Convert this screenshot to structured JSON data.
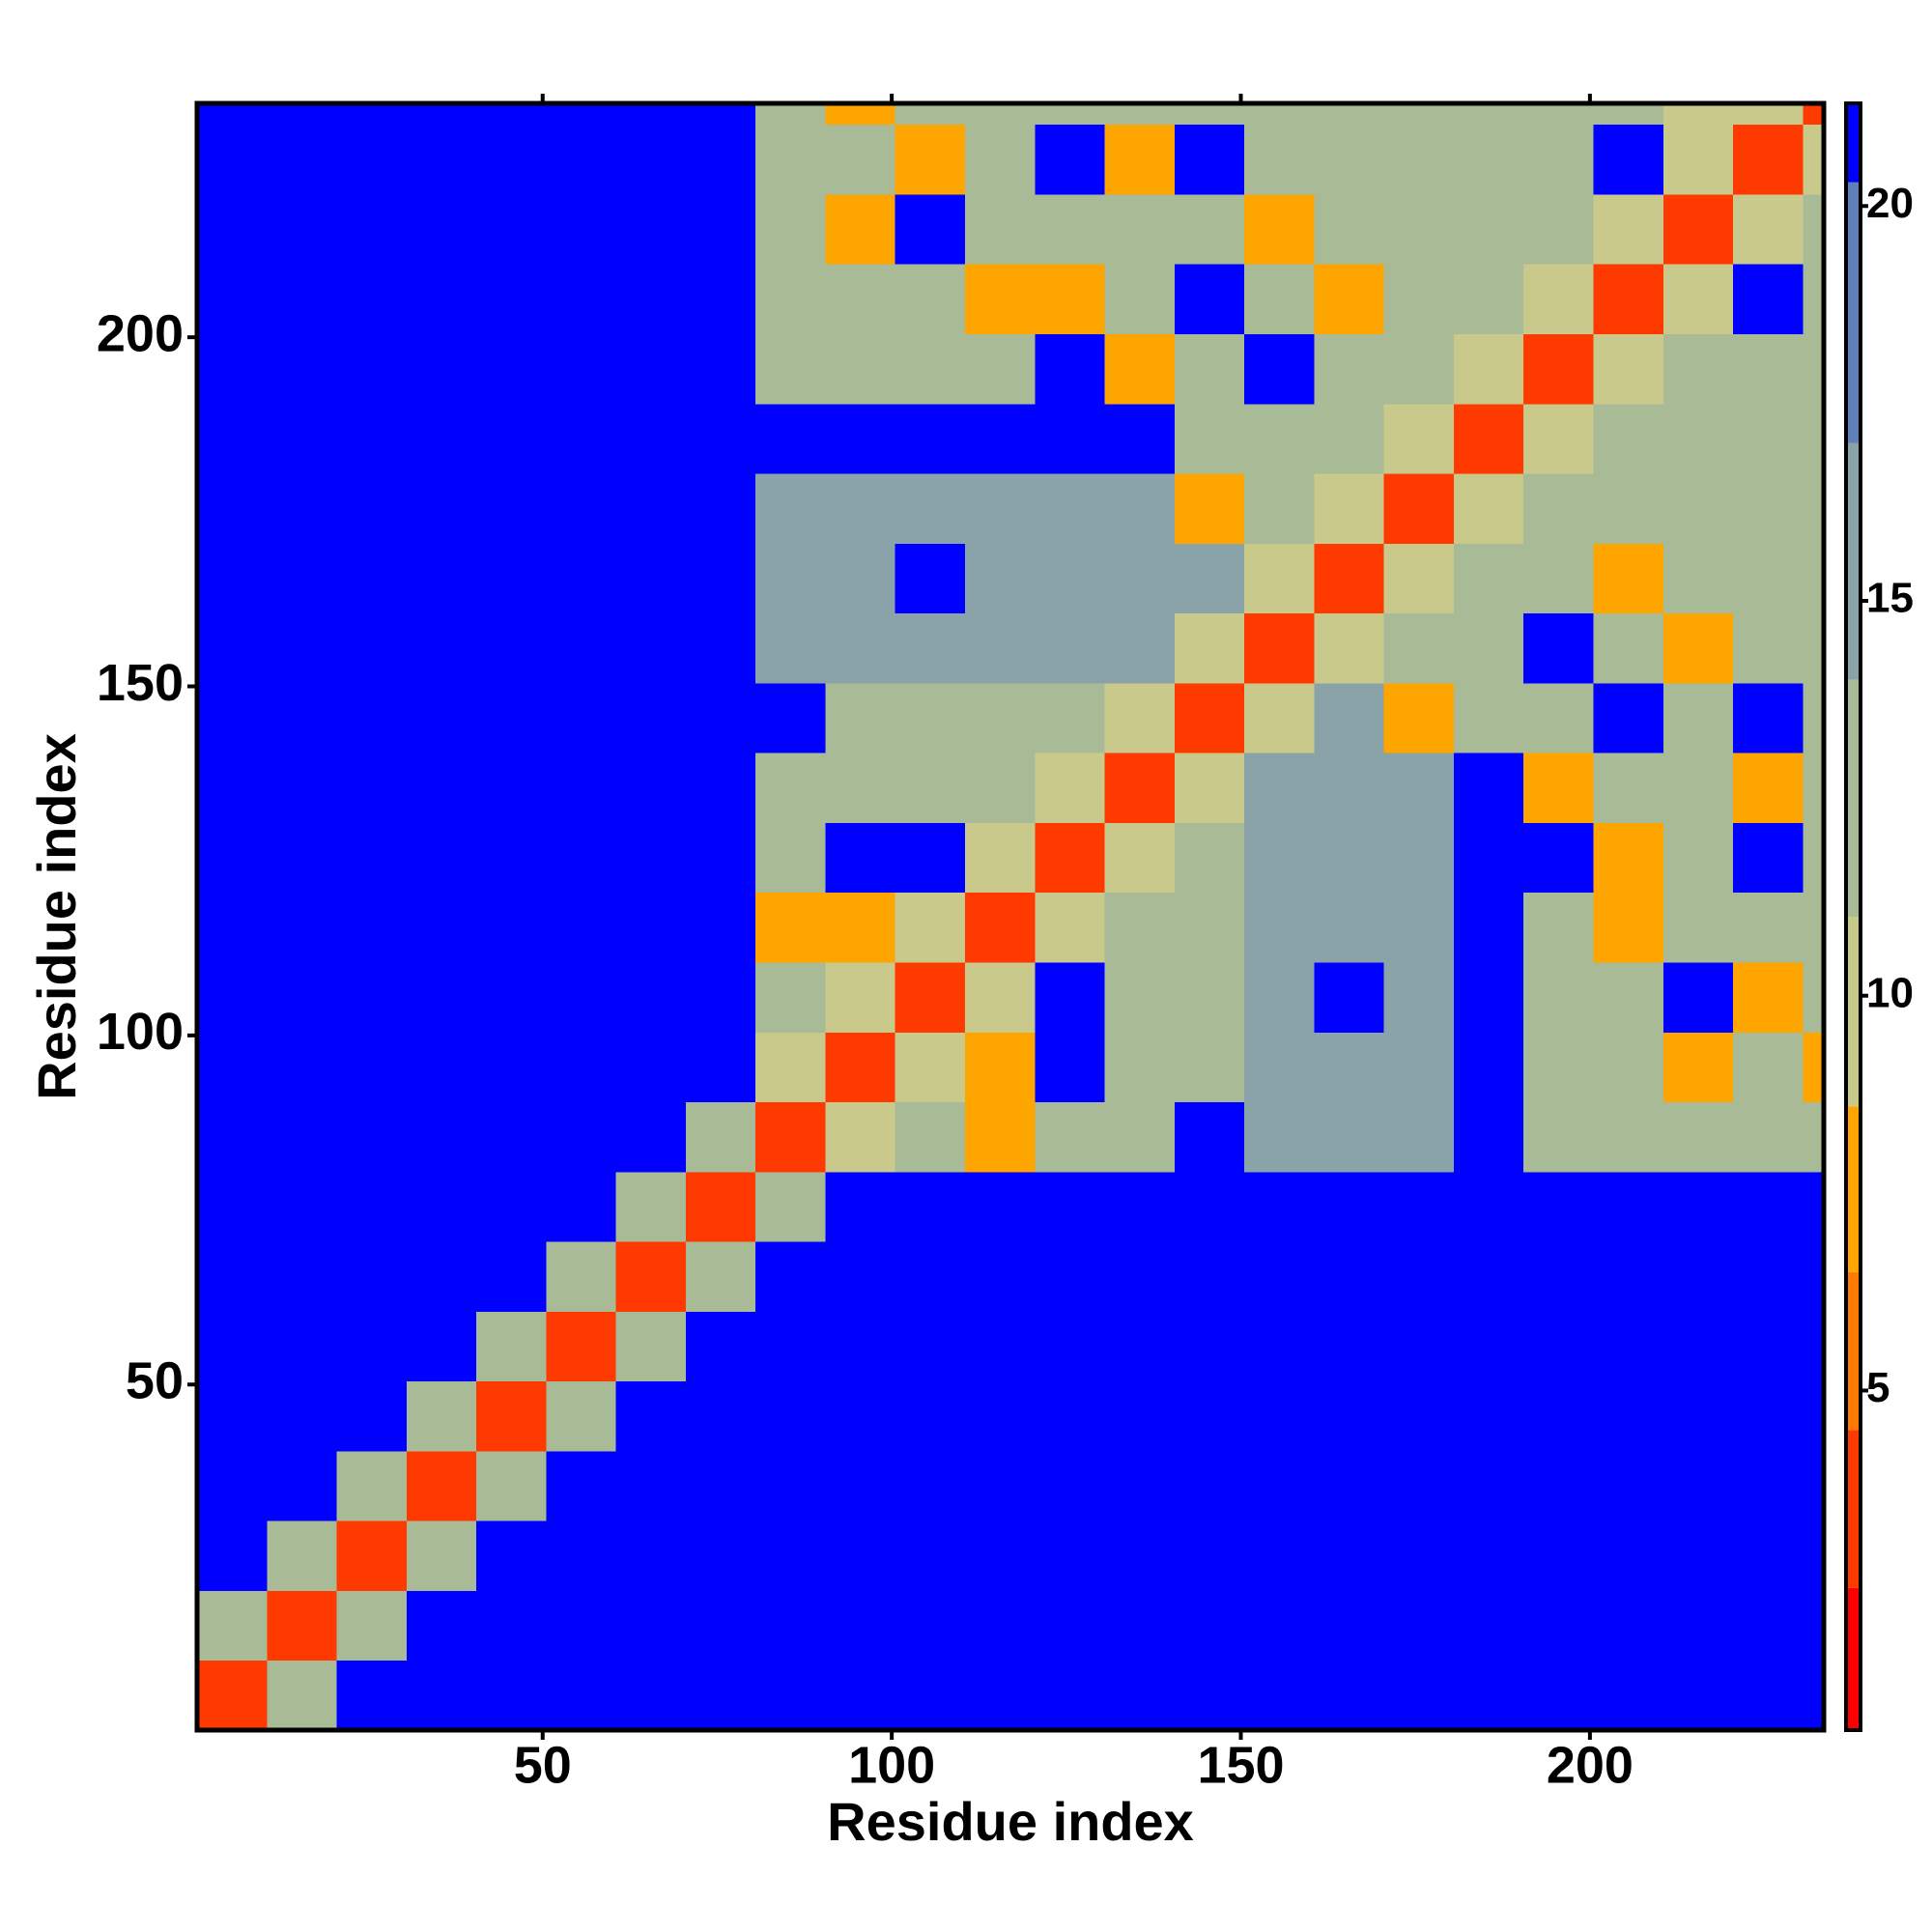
{
  "chart_data": {
    "type": "heatmap",
    "x_label": "Residue index",
    "y_label": "Residue index",
    "xlim": [
      0.5,
      233.5
    ],
    "ylim": [
      0.5,
      233.5
    ],
    "xticks": [
      50,
      100,
      150,
      200
    ],
    "yticks": [
      50,
      100,
      150,
      200
    ],
    "xbins": [
      0.5,
      10.5,
      20.5,
      30.5,
      40.5,
      50.5,
      60.5,
      70.5,
      80.5,
      90.5,
      100.5,
      110.5,
      120.5,
      130.5,
      140.5,
      150.5,
      160.5,
      170.5,
      180.5,
      190.5,
      200.5,
      210.5,
      220.5,
      230.5,
      233.5
    ],
    "ybins": [
      0.5,
      10.5,
      20.5,
      30.5,
      40.5,
      50.5,
      60.5,
      70.5,
      80.5,
      90.5,
      100.5,
      110.5,
      120.5,
      130.5,
      140.5,
      150.5,
      160.5,
      170.5,
      180.5,
      190.5,
      200.5,
      210.5,
      220.5,
      230.5,
      233.5
    ],
    "values": [
      [
        4,
        12,
        21,
        21,
        21,
        21,
        21,
        21,
        21,
        21,
        21,
        21,
        21,
        21,
        21,
        21,
        21,
        21,
        21,
        21,
        21,
        21,
        21,
        21
      ],
      [
        12,
        4,
        12,
        21,
        21,
        21,
        21,
        21,
        21,
        21,
        21,
        21,
        21,
        21,
        21,
        21,
        21,
        21,
        21,
        21,
        21,
        21,
        21,
        21
      ],
      [
        21,
        12,
        4,
        12,
        21,
        21,
        21,
        21,
        21,
        21,
        21,
        21,
        21,
        21,
        21,
        21,
        21,
        21,
        21,
        21,
        21,
        21,
        21,
        21
      ],
      [
        21,
        21,
        12,
        4,
        12,
        21,
        21,
        21,
        21,
        21,
        21,
        21,
        21,
        21,
        21,
        21,
        21,
        21,
        21,
        21,
        21,
        21,
        21,
        21
      ],
      [
        21,
        21,
        21,
        12,
        4,
        12,
        21,
        21,
        21,
        21,
        21,
        21,
        21,
        21,
        21,
        21,
        21,
        21,
        21,
        21,
        21,
        21,
        21,
        21
      ],
      [
        21,
        21,
        21,
        21,
        12,
        4,
        12,
        21,
        21,
        21,
        21,
        21,
        21,
        21,
        21,
        21,
        21,
        21,
        21,
        21,
        21,
        21,
        21,
        21
      ],
      [
        21,
        21,
        21,
        21,
        21,
        12,
        4,
        12,
        21,
        21,
        21,
        21,
        21,
        21,
        21,
        21,
        21,
        21,
        21,
        21,
        21,
        21,
        21,
        21
      ],
      [
        21,
        21,
        21,
        21,
        21,
        21,
        12,
        4,
        12,
        21,
        21,
        21,
        21,
        21,
        21,
        21,
        21,
        21,
        21,
        21,
        21,
        21,
        21,
        21
      ],
      [
        21,
        21,
        21,
        21,
        21,
        21,
        21,
        12,
        4,
        11,
        14,
        8,
        14,
        14,
        21,
        17,
        17,
        17,
        21,
        14,
        14,
        14,
        14,
        14
      ],
      [
        21,
        21,
        21,
        21,
        21,
        21,
        21,
        21,
        11,
        4,
        11,
        8,
        21,
        14,
        14,
        17,
        17,
        17,
        21,
        14,
        14,
        8,
        14,
        8
      ],
      [
        21,
        21,
        21,
        21,
        21,
        21,
        21,
        21,
        14,
        11,
        4,
        11,
        21,
        14,
        14,
        17,
        21,
        17,
        21,
        14,
        14,
        21,
        8,
        14
      ],
      [
        21,
        21,
        21,
        21,
        21,
        21,
        21,
        21,
        8,
        8,
        11,
        4,
        11,
        14,
        14,
        17,
        17,
        17,
        21,
        14,
        8,
        14,
        14,
        14
      ],
      [
        21,
        21,
        21,
        21,
        21,
        21,
        21,
        21,
        14,
        21,
        21,
        11,
        4,
        11,
        14,
        17,
        17,
        17,
        21,
        21,
        8,
        14,
        21,
        14
      ],
      [
        21,
        21,
        21,
        21,
        21,
        21,
        21,
        21,
        14,
        14,
        14,
        14,
        11,
        4,
        11,
        17,
        17,
        17,
        21,
        8,
        14,
        14,
        8,
        14
      ],
      [
        21,
        21,
        21,
        21,
        21,
        21,
        21,
        21,
        21,
        14,
        14,
        14,
        14,
        11,
        4,
        11,
        17,
        8,
        14,
        14,
        21,
        14,
        21,
        14
      ],
      [
        21,
        21,
        21,
        21,
        21,
        21,
        21,
        21,
        17,
        17,
        17,
        17,
        17,
        17,
        11,
        4,
        11,
        14,
        14,
        21,
        14,
        8,
        14,
        14
      ],
      [
        21,
        21,
        21,
        21,
        21,
        21,
        21,
        21,
        17,
        17,
        21,
        17,
        17,
        17,
        17,
        11,
        4,
        11,
        14,
        14,
        8,
        14,
        14,
        14
      ],
      [
        21,
        21,
        21,
        21,
        21,
        21,
        21,
        21,
        17,
        17,
        17,
        17,
        17,
        17,
        8,
        14,
        11,
        4,
        11,
        14,
        14,
        14,
        14,
        14
      ],
      [
        21,
        21,
        21,
        21,
        21,
        21,
        21,
        21,
        21,
        21,
        21,
        21,
        21,
        21,
        14,
        14,
        14,
        11,
        4,
        11,
        14,
        14,
        14,
        14
      ],
      [
        21,
        21,
        21,
        21,
        21,
        21,
        21,
        21,
        14,
        14,
        14,
        14,
        21,
        8,
        14,
        21,
        14,
        14,
        11,
        4,
        11,
        14,
        14,
        14
      ],
      [
        21,
        21,
        21,
        21,
        21,
        21,
        21,
        21,
        14,
        14,
        14,
        8,
        8,
        14,
        21,
        14,
        8,
        14,
        14,
        11,
        4,
        11,
        21,
        14
      ],
      [
        21,
        21,
        21,
        21,
        21,
        21,
        21,
        21,
        14,
        8,
        21,
        14,
        14,
        14,
        14,
        8,
        14,
        14,
        14,
        14,
        11,
        4,
        11,
        14
      ],
      [
        21,
        21,
        21,
        21,
        21,
        21,
        21,
        21,
        14,
        14,
        8,
        14,
        21,
        8,
        21,
        14,
        14,
        14,
        14,
        14,
        21,
        11,
        4,
        11
      ],
      [
        21,
        21,
        21,
        21,
        21,
        21,
        21,
        21,
        14,
        8,
        14,
        14,
        14,
        14,
        14,
        14,
        14,
        14,
        14,
        14,
        14,
        11,
        11,
        4
      ]
    ],
    "colorbar": {
      "lim": [
        0.7,
        21.3
      ],
      "ticks": [
        5,
        10,
        15,
        20
      ],
      "levels": [
        0.7,
        2.5,
        4.5,
        6.5,
        8.6,
        11,
        14,
        17,
        20.3,
        21.3
      ],
      "colors": [
        "#ff0000",
        "#ff3a00",
        "#ff7a00",
        "#ffa500",
        "#c9c98c",
        "#a9bb96",
        "#8aa3a8",
        "#5f80b8",
        "#0000ff"
      ]
    }
  }
}
